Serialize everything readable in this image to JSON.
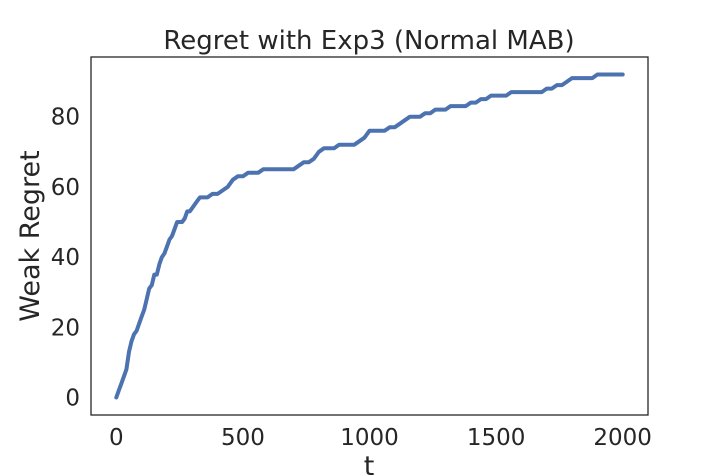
{
  "chart_data": {
    "type": "line",
    "title": "Regret with Exp3 (Normal MAB)",
    "xlabel": "t",
    "ylabel": "Weak Regret",
    "xlim": [
      -100,
      2100
    ],
    "ylim": [
      -5,
      97
    ],
    "xticks": [
      0,
      500,
      1000,
      1500,
      2000
    ],
    "xtick_labels": [
      "0",
      "500",
      "1000",
      "1500",
      "2000"
    ],
    "yticks": [
      0,
      20,
      40,
      60,
      80
    ],
    "ytick_labels": [
      "0",
      "20",
      "40",
      "60",
      "80"
    ],
    "grid": false,
    "line_color": "#4c72b0",
    "series": [
      {
        "x": [
          0,
          10,
          20,
          30,
          40,
          50,
          60,
          70,
          80,
          90,
          100,
          110,
          120,
          130,
          140,
          150,
          160,
          170,
          180,
          190,
          200,
          210,
          220,
          230,
          240,
          250,
          260,
          270,
          280,
          290,
          300,
          310,
          320,
          330,
          340,
          350,
          360,
          380,
          400,
          420,
          440,
          460,
          480,
          500,
          520,
          540,
          560,
          580,
          600,
          620,
          640,
          660,
          680,
          700,
          720,
          740,
          760,
          780,
          800,
          820,
          840,
          860,
          880,
          900,
          920,
          940,
          960,
          980,
          1000,
          1020,
          1040,
          1060,
          1080,
          1100,
          1120,
          1140,
          1160,
          1180,
          1200,
          1220,
          1240,
          1260,
          1280,
          1300,
          1320,
          1340,
          1360,
          1380,
          1400,
          1420,
          1440,
          1460,
          1480,
          1500,
          1520,
          1540,
          1560,
          1580,
          1600,
          1620,
          1640,
          1660,
          1680,
          1700,
          1720,
          1740,
          1760,
          1780,
          1800,
          1820,
          1840,
          1860,
          1880,
          1900,
          1920,
          1940,
          1960,
          1980,
          2000
        ],
        "y": [
          0,
          2,
          4,
          6,
          8,
          13,
          16,
          18,
          19,
          21,
          23,
          25,
          28,
          31,
          32,
          35,
          35,
          38,
          40,
          41,
          43,
          45,
          46,
          48,
          50,
          50,
          50,
          51,
          53,
          53,
          54,
          55,
          56,
          57,
          57,
          57,
          57,
          58,
          58,
          59,
          60,
          62,
          63,
          63,
          64,
          64,
          64,
          65,
          65,
          65,
          65,
          65,
          65,
          65,
          66,
          67,
          67,
          68,
          70,
          71,
          71,
          71,
          72,
          72,
          72,
          72,
          73,
          74,
          76,
          76,
          76,
          76,
          77,
          77,
          78,
          79,
          80,
          80,
          80,
          81,
          81,
          82,
          82,
          82,
          83,
          83,
          83,
          83,
          84,
          84,
          85,
          85,
          86,
          86,
          86,
          86,
          87,
          87,
          87,
          87,
          87,
          87,
          87,
          88,
          88,
          89,
          89,
          90,
          91,
          91,
          91,
          91,
          91,
          92,
          92,
          92,
          92,
          92,
          92
        ]
      }
    ]
  }
}
